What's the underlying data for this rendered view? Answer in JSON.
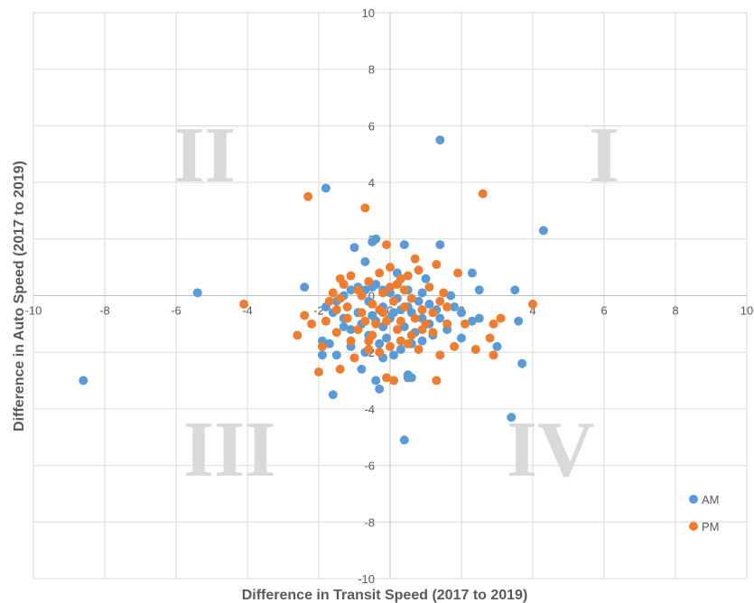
{
  "chart_data": {
    "type": "scatter",
    "title": "",
    "xlabel": "Difference in Transit Speed (2017 to 2019)",
    "ylabel": "Difference in Auto Speed (2017 to 2019)",
    "xlim": [
      -10,
      10
    ],
    "ylim": [
      -10,
      10
    ],
    "xticks": [
      -10,
      -8,
      -6,
      -4,
      -2,
      0,
      2,
      4,
      6,
      8,
      10
    ],
    "yticks": [
      -10,
      -8,
      -6,
      -4,
      -2,
      0,
      2,
      4,
      6,
      8,
      10
    ],
    "grid": true,
    "legend_position": "bottom-right",
    "quadrant_labels": [
      "I",
      "II",
      "III",
      "IV"
    ],
    "series": [
      {
        "name": "AM",
        "color": "#5b9bd5",
        "points": [
          [
            -8.6,
            -3.0
          ],
          [
            -5.4,
            0.1
          ],
          [
            -2.4,
            0.3
          ],
          [
            -1.8,
            3.8
          ],
          [
            1.4,
            5.5
          ],
          [
            4.3,
            2.3
          ],
          [
            1.4,
            1.8
          ],
          [
            0.4,
            1.8
          ],
          [
            -0.4,
            2.0
          ],
          [
            -1.0,
            1.7
          ],
          [
            -0.7,
            1.2
          ],
          [
            2.3,
            0.8
          ],
          [
            3.5,
            0.2
          ],
          [
            -0.5,
            1.9
          ],
          [
            1.0,
            0.6
          ],
          [
            2.5,
            0.2
          ],
          [
            0.5,
            0.2
          ],
          [
            0.2,
            0.8
          ],
          [
            -1.8,
            -0.4
          ],
          [
            -1.6,
            -0.6
          ],
          [
            -1.9,
            -2.1
          ],
          [
            -1.7,
            -1.7
          ],
          [
            -1.9,
            -1.6
          ],
          [
            -1.5,
            -2.1
          ],
          [
            -1.6,
            -3.5
          ],
          [
            -0.8,
            -2.6
          ],
          [
            -0.4,
            -3.0
          ],
          [
            -0.3,
            -3.3
          ],
          [
            0.4,
            -5.1
          ],
          [
            0.5,
            -2.8
          ],
          [
            0.6,
            -2.9
          ],
          [
            0.5,
            -2.9
          ],
          [
            0.1,
            -2.1
          ],
          [
            -0.3,
            -1.7
          ],
          [
            -0.6,
            -1.4
          ],
          [
            -1.1,
            -1.2
          ],
          [
            -1.3,
            -0.8
          ],
          [
            -0.9,
            -0.6
          ],
          [
            -0.4,
            -0.9
          ],
          [
            0.0,
            -0.8
          ],
          [
            0.4,
            -1.1
          ],
          [
            0.9,
            -1.6
          ],
          [
            1.2,
            -1.4
          ],
          [
            1.4,
            -0.8
          ],
          [
            1.6,
            -1.2
          ],
          [
            2.0,
            -0.6
          ],
          [
            2.3,
            -0.9
          ],
          [
            2.5,
            -0.8
          ],
          [
            3.6,
            -0.9
          ],
          [
            3.0,
            -1.8
          ],
          [
            3.7,
            -2.4
          ],
          [
            3.4,
            -4.3
          ],
          [
            2.0,
            -1.5
          ],
          [
            1.8,
            -0.4
          ],
          [
            1.1,
            -0.3
          ],
          [
            0.8,
            -0.2
          ],
          [
            0.5,
            -0.4
          ],
          [
            0.2,
            -0.1
          ],
          [
            0.0,
            0.1
          ],
          [
            -0.2,
            0.2
          ],
          [
            -0.5,
            0.3
          ],
          [
            -0.7,
            0.2
          ],
          [
            -0.9,
            0.3
          ],
          [
            -1.1,
            0.2
          ],
          [
            -1.3,
            0.0
          ],
          [
            -1.5,
            -0.2
          ],
          [
            -0.6,
            -0.2
          ],
          [
            -0.2,
            -0.4
          ],
          [
            0.3,
            -0.5
          ],
          [
            0.6,
            -0.6
          ],
          [
            0.9,
            -0.8
          ],
          [
            1.1,
            -1.0
          ],
          [
            -1.1,
            -1.8
          ],
          [
            -0.7,
            -2.0
          ],
          [
            -0.2,
            -2.2
          ],
          [
            0.6,
            -1.7
          ],
          [
            -1.3,
            -1.1
          ],
          [
            0.7,
            -1.3
          ],
          [
            0.9,
            0.1
          ],
          [
            -0.4,
            0.4
          ],
          [
            0.2,
            0.4
          ],
          [
            -0.8,
            -1.0
          ],
          [
            -0.2,
            -1.1
          ],
          [
            0.3,
            -1.9
          ],
          [
            -0.5,
            -0.7
          ],
          [
            0.1,
            -0.6
          ],
          [
            1.3,
            -0.5
          ],
          [
            1.7,
            0.0
          ],
          [
            -0.1,
            -1.5
          ]
        ]
      },
      {
        "name": "PM",
        "color": "#ed7d31",
        "points": [
          [
            -4.1,
            -0.3
          ],
          [
            -2.3,
            3.5
          ],
          [
            -0.7,
            3.1
          ],
          [
            2.6,
            3.6
          ],
          [
            -0.1,
            1.8
          ],
          [
            0.7,
            1.3
          ],
          [
            1.3,
            1.1
          ],
          [
            1.9,
            0.8
          ],
          [
            -2.6,
            -1.4
          ],
          [
            -2.2,
            -1.0
          ],
          [
            -2.0,
            -2.7
          ],
          [
            -1.4,
            -2.6
          ],
          [
            -0.1,
            -2.9
          ],
          [
            0.1,
            -3.0
          ],
          [
            1.3,
            -3.0
          ],
          [
            1.4,
            -2.1
          ],
          [
            1.8,
            -1.8
          ],
          [
            2.4,
            -1.9
          ],
          [
            2.8,
            -1.5
          ],
          [
            2.9,
            -1.0
          ],
          [
            3.1,
            -0.8
          ],
          [
            2.9,
            -2.1
          ],
          [
            4.0,
            -0.3
          ],
          [
            2.1,
            -1.0
          ],
          [
            1.6,
            -0.4
          ],
          [
            1.2,
            -0.6
          ],
          [
            0.9,
            -1.2
          ],
          [
            0.6,
            -1.4
          ],
          [
            0.3,
            -1.6
          ],
          [
            0.0,
            -1.8
          ],
          [
            -0.3,
            -2.0
          ],
          [
            -0.6,
            -1.6
          ],
          [
            -0.9,
            -1.2
          ],
          [
            -1.2,
            -0.8
          ],
          [
            -1.5,
            -0.5
          ],
          [
            -1.7,
            -0.2
          ],
          [
            -1.9,
            -1.8
          ],
          [
            -1.5,
            -1.3
          ],
          [
            -1.1,
            -1.6
          ],
          [
            -0.8,
            -0.6
          ],
          [
            -0.5,
            -0.3
          ],
          [
            -0.2,
            0.1
          ],
          [
            0.2,
            0.4
          ],
          [
            0.5,
            0.7
          ],
          [
            0.8,
            0.9
          ],
          [
            1.1,
            0.3
          ],
          [
            1.4,
            -0.2
          ],
          [
            -1.3,
            0.4
          ],
          [
            -1.1,
            0.7
          ],
          [
            -0.9,
            0.2
          ],
          [
            -0.6,
            0.5
          ],
          [
            -0.3,
            0.8
          ],
          [
            0.0,
            1.0
          ],
          [
            0.3,
            0.6
          ],
          [
            -1.6,
            0.1
          ],
          [
            -1.4,
            -0.1
          ],
          [
            -0.2,
            -0.6
          ],
          [
            0.4,
            -0.4
          ],
          [
            0.7,
            -0.8
          ],
          [
            1.0,
            -1.0
          ],
          [
            -0.4,
            -1.0
          ],
          [
            -0.7,
            -0.9
          ],
          [
            0.2,
            -1.2
          ],
          [
            0.5,
            -1.7
          ],
          [
            -1.0,
            -2.2
          ],
          [
            -0.5,
            -1.4
          ],
          [
            1.5,
            0.1
          ],
          [
            -1.8,
            -0.9
          ],
          [
            0.1,
            -0.2
          ],
          [
            -0.1,
            -0.9
          ],
          [
            0.6,
            -0.1
          ],
          [
            0.9,
            -0.5
          ],
          [
            -1.2,
            -0.4
          ],
          [
            -0.8,
            0.0
          ],
          [
            -0.3,
            -0.5
          ],
          [
            0.3,
            -0.9
          ],
          [
            1.2,
            -1.3
          ],
          [
            0.0,
            0.3
          ],
          [
            -0.6,
            -1.9
          ],
          [
            0.8,
            -1.9
          ],
          [
            1.6,
            -1.0
          ],
          [
            -2.4,
            -0.7
          ],
          [
            -1.4,
            0.6
          ],
          [
            0.4,
            0.2
          ]
        ]
      }
    ]
  }
}
